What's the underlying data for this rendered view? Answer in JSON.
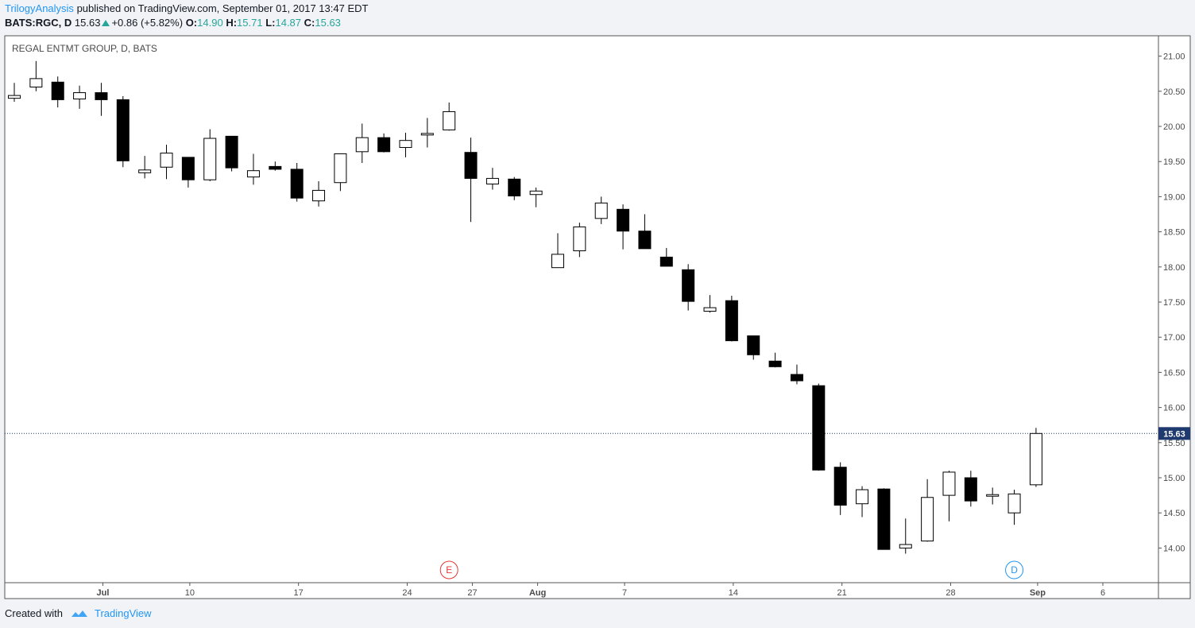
{
  "header": {
    "author": "TrilogyAnalysis",
    "published_text": "published on TradingView.com, September 01, 2017 13:47 EDT",
    "symbol": "BATS:RGC, D",
    "last": "15.63",
    "change": "+0.86 (+5.82%)",
    "o_label": "O:",
    "o": "14.90",
    "h_label": "H:",
    "h": "15.71",
    "l_label": "L:",
    "l": "14.87",
    "c_label": "C:",
    "c": "15.63"
  },
  "footer": {
    "created_with": "Created with",
    "brand": "TradingView"
  },
  "colors": {
    "accent": "#2196f3",
    "up": "#26a69a",
    "price_tag": "#1e3a6e",
    "earnings": "#e53935"
  },
  "chart_data": {
    "type": "candlestick",
    "title": "REGAL ENTMT GROUP, D, BATS",
    "yticks": [
      "21.00",
      "20.50",
      "20.00",
      "19.50",
      "19.00",
      "18.50",
      "18.00",
      "17.50",
      "17.00",
      "16.50",
      "16.00",
      "15.50",
      "15.00",
      "14.50",
      "14.00"
    ],
    "ylim": [
      13.6,
      21.3
    ],
    "xticks": [
      {
        "label": "Jul",
        "idx": 4
      },
      {
        "label": "10",
        "idx": 8
      },
      {
        "label": "17",
        "idx": 13
      },
      {
        "label": "24",
        "idx": 18
      },
      {
        "label": "27",
        "idx": 21
      },
      {
        "label": "Aug",
        "idx": 24
      },
      {
        "label": "7",
        "idx": 28
      },
      {
        "label": "14",
        "idx": 33
      },
      {
        "label": "21",
        "idx": 38
      },
      {
        "label": "28",
        "idx": 43
      },
      {
        "label": "Sep",
        "idx": 47
      },
      {
        "label": "6",
        "idx": 50
      }
    ],
    "last_price": 15.63,
    "events": [
      {
        "label": "E",
        "idx": 20,
        "color": "#e53935"
      },
      {
        "label": "D",
        "idx": 46,
        "color": "#2196f3"
      }
    ],
    "candles": [
      {
        "o": 20.4,
        "h": 20.62,
        "l": 20.35,
        "c": 20.44
      },
      {
        "o": 20.56,
        "h": 20.93,
        "l": 20.5,
        "c": 20.68
      },
      {
        "o": 20.63,
        "h": 20.71,
        "l": 20.27,
        "c": 20.38
      },
      {
        "o": 20.39,
        "h": 20.58,
        "l": 20.25,
        "c": 20.48
      },
      {
        "o": 20.48,
        "h": 20.62,
        "l": 20.15,
        "c": 20.38
      },
      {
        "o": 20.38,
        "h": 20.43,
        "l": 19.42,
        "c": 19.51
      },
      {
        "o": 19.34,
        "h": 19.58,
        "l": 19.26,
        "c": 19.38
      },
      {
        "o": 19.42,
        "h": 19.74,
        "l": 19.25,
        "c": 19.62
      },
      {
        "o": 19.56,
        "h": 19.56,
        "l": 19.13,
        "c": 19.24
      },
      {
        "o": 19.24,
        "h": 19.96,
        "l": 19.22,
        "c": 19.83
      },
      {
        "o": 19.86,
        "h": 19.86,
        "l": 19.36,
        "c": 19.41
      },
      {
        "o": 19.28,
        "h": 19.61,
        "l": 19.17,
        "c": 19.37
      },
      {
        "o": 19.43,
        "h": 19.5,
        "l": 19.37,
        "c": 19.39
      },
      {
        "o": 19.39,
        "h": 19.48,
        "l": 18.93,
        "c": 18.98
      },
      {
        "o": 18.94,
        "h": 19.22,
        "l": 18.86,
        "c": 19.09
      },
      {
        "o": 19.2,
        "h": 19.61,
        "l": 19.08,
        "c": 19.61
      },
      {
        "o": 19.64,
        "h": 20.04,
        "l": 19.48,
        "c": 19.84
      },
      {
        "o": 19.84,
        "h": 19.9,
        "l": 19.63,
        "c": 19.64
      },
      {
        "o": 19.7,
        "h": 19.91,
        "l": 19.56,
        "c": 19.8
      },
      {
        "o": 19.89,
        "h": 20.12,
        "l": 19.7,
        "c": 19.9
      },
      {
        "o": 19.95,
        "h": 20.34,
        "l": 19.94,
        "c": 20.21
      },
      {
        "o": 19.63,
        "h": 19.84,
        "l": 18.64,
        "c": 19.26
      },
      {
        "o": 19.18,
        "h": 19.41,
        "l": 19.1,
        "c": 19.26
      },
      {
        "o": 19.25,
        "h": 19.28,
        "l": 18.95,
        "c": 19.01
      },
      {
        "o": 19.03,
        "h": 19.13,
        "l": 18.85,
        "c": 19.08
      },
      {
        "o": 17.99,
        "h": 18.48,
        "l": 17.99,
        "c": 18.18
      },
      {
        "o": 18.23,
        "h": 18.63,
        "l": 18.14,
        "c": 18.57
      },
      {
        "o": 18.69,
        "h": 19.0,
        "l": 18.61,
        "c": 18.91
      },
      {
        "o": 18.82,
        "h": 18.89,
        "l": 18.25,
        "c": 18.51
      },
      {
        "o": 18.51,
        "h": 18.75,
        "l": 18.26,
        "c": 18.26
      },
      {
        "o": 18.14,
        "h": 18.27,
        "l": 18.01,
        "c": 18.01
      },
      {
        "o": 17.96,
        "h": 18.04,
        "l": 17.38,
        "c": 17.51
      },
      {
        "o": 17.37,
        "h": 17.6,
        "l": 17.35,
        "c": 17.42
      },
      {
        "o": 17.52,
        "h": 17.59,
        "l": 16.94,
        "c": 16.95
      },
      {
        "o": 17.02,
        "h": 17.02,
        "l": 16.68,
        "c": 16.75
      },
      {
        "o": 16.66,
        "h": 16.78,
        "l": 16.57,
        "c": 16.58
      },
      {
        "o": 16.47,
        "h": 16.61,
        "l": 16.33,
        "c": 16.38
      },
      {
        "o": 16.31,
        "h": 16.34,
        "l": 15.1,
        "c": 15.11
      },
      {
        "o": 15.15,
        "h": 15.22,
        "l": 14.47,
        "c": 14.61
      },
      {
        "o": 14.63,
        "h": 14.88,
        "l": 14.44,
        "c": 14.83
      },
      {
        "o": 14.84,
        "h": 14.85,
        "l": 13.98,
        "c": 13.98
      },
      {
        "o": 14.0,
        "h": 14.42,
        "l": 13.92,
        "c": 14.05
      },
      {
        "o": 14.1,
        "h": 14.98,
        "l": 14.09,
        "c": 14.72
      },
      {
        "o": 14.75,
        "h": 15.1,
        "l": 14.38,
        "c": 15.08
      },
      {
        "o": 15.0,
        "h": 15.1,
        "l": 14.59,
        "c": 14.67
      },
      {
        "o": 14.74,
        "h": 14.86,
        "l": 14.62,
        "c": 14.76
      },
      {
        "o": 14.5,
        "h": 14.83,
        "l": 14.33,
        "c": 14.77
      },
      {
        "o": 14.9,
        "h": 15.71,
        "l": 14.87,
        "c": 15.63
      }
    ]
  }
}
